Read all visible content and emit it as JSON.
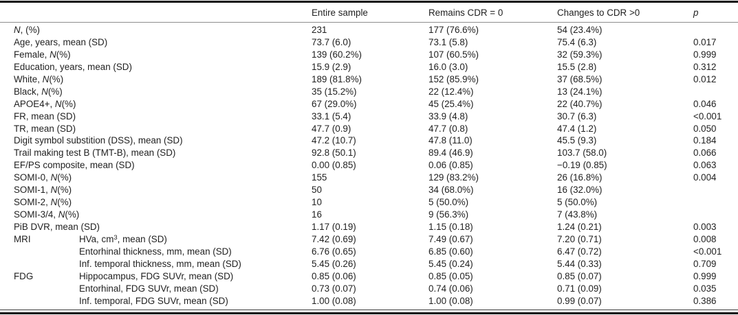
{
  "table": {
    "header": {
      "entire": "Entire sample",
      "remains": "Remains CDR = 0",
      "changes": "Changes to CDR >0",
      "p": "p"
    },
    "rows": [
      {
        "group": "",
        "indent": false,
        "pre": "",
        "it": "N",
        "sup": "",
        "post": ", (%)",
        "entire": "231",
        "remains": "177 (76.6%)",
        "changes": "54 (23.4%)",
        "p": ""
      },
      {
        "group": "",
        "indent": false,
        "pre": "Age, years, mean (SD)",
        "it": "",
        "sup": "",
        "post": "",
        "entire": "73.7 (6.0)",
        "remains": "73.1 (5.8)",
        "changes": "75.4 (6.3)",
        "p": "0.017"
      },
      {
        "group": "",
        "indent": false,
        "pre": "Female, ",
        "it": "N",
        "sup": "",
        "post": "(%)",
        "entire": "139 (60.2%)",
        "remains": "107 (60.5%)",
        "changes": "32 (59.3%)",
        "p": "0.999"
      },
      {
        "group": "",
        "indent": false,
        "pre": "Education, years, mean (SD)",
        "it": "",
        "sup": "",
        "post": "",
        "entire": "15.9 (2.9)",
        "remains": "16.0 (3.0)",
        "changes": "15.5 (2.8)",
        "p": "0.312"
      },
      {
        "group": "",
        "indent": false,
        "pre": "White, ",
        "it": "N",
        "sup": "",
        "post": "(%)",
        "entire": "189 (81.8%)",
        "remains": "152 (85.9%)",
        "changes": "37 (68.5%)",
        "p": "0.012"
      },
      {
        "group": "",
        "indent": false,
        "pre": "Black, ",
        "it": "N",
        "sup": "",
        "post": "(%)",
        "entire": "35 (15.2%)",
        "remains": "22 (12.4%)",
        "changes": "13 (24.1%)",
        "p": ""
      },
      {
        "group": "",
        "indent": false,
        "pre": "APOE4+, ",
        "it": "N",
        "sup": "",
        "post": "(%)",
        "entire": "67 (29.0%)",
        "remains": "45 (25.4%)",
        "changes": "22 (40.7%)",
        "p": "0.046"
      },
      {
        "group": "",
        "indent": false,
        "pre": "FR, mean (SD)",
        "it": "",
        "sup": "",
        "post": "",
        "entire": "33.1 (5.4)",
        "remains": "33.9 (4.8)",
        "changes": "30.7 (6.3)",
        "p": "<0.001"
      },
      {
        "group": "",
        "indent": false,
        "pre": "TR, mean (SD)",
        "it": "",
        "sup": "",
        "post": "",
        "entire": "47.7 (0.9)",
        "remains": "47.7 (0.8)",
        "changes": "47.4 (1.2)",
        "p": "0.050"
      },
      {
        "group": "",
        "indent": false,
        "pre": "Digit symbol substition (DSS), mean (SD)",
        "it": "",
        "sup": "",
        "post": "",
        "entire": "47.2 (10.7)",
        "remains": "47.8 (11.0)",
        "changes": "45.5 (9.3)",
        "p": "0.184"
      },
      {
        "group": "",
        "indent": false,
        "pre": "Trail making test B (TMT-B), mean (SD)",
        "it": "",
        "sup": "",
        "post": "",
        "entire": "92.8 (50.1)",
        "remains": "89.4 (46.9)",
        "changes": "103.7 (58.0)",
        "p": "0.066"
      },
      {
        "group": "",
        "indent": false,
        "pre": "EF/PS composite, mean (SD)",
        "it": "",
        "sup": "",
        "post": "",
        "entire": "0.00 (0.85)",
        "remains": "0.06 (0.85)",
        "changes": "−0.19 (0.85)",
        "p": "0.063"
      },
      {
        "group": "",
        "indent": false,
        "pre": "SOMI-0, ",
        "it": "N",
        "sup": "",
        "post": "(%)",
        "entire": "155",
        "remains": "129 (83.2%)",
        "changes": "26 (16.8%)",
        "p": "0.004"
      },
      {
        "group": "",
        "indent": false,
        "pre": "SOMI-1, ",
        "it": "N",
        "sup": "",
        "post": "(%)",
        "entire": "50",
        "remains": "34 (68.0%)",
        "changes": "16 (32.0%)",
        "p": ""
      },
      {
        "group": "",
        "indent": false,
        "pre": "SOMI-2, ",
        "it": "N",
        "sup": "",
        "post": "(%)",
        "entire": "10",
        "remains": "5 (50.0%)",
        "changes": "5 (50.0%)",
        "p": ""
      },
      {
        "group": "",
        "indent": false,
        "pre": "SOMI-3/4, ",
        "it": "N",
        "sup": "",
        "post": "(%)",
        "entire": "16",
        "remains": "9 (56.3%)",
        "changes": "7 (43.8%)",
        "p": ""
      },
      {
        "group": "",
        "indent": false,
        "pre": "PiB DVR, mean (SD)",
        "it": "",
        "sup": "",
        "post": "",
        "entire": "1.17 (0.19)",
        "remains": "1.15 (0.18)",
        "changes": "1.24 (0.21)",
        "p": "0.003"
      },
      {
        "group": "MRI",
        "indent": true,
        "pre": "HVa, cm",
        "it": "",
        "sup": "3",
        "post": ", mean (SD)",
        "entire": "7.42 (0.69)",
        "remains": "7.49 (0.67)",
        "changes": "7.20 (0.71)",
        "p": "0.008"
      },
      {
        "group": "",
        "indent": true,
        "pre": "Entorhinal thickness, mm, mean (SD)",
        "it": "",
        "sup": "",
        "post": "",
        "entire": "6.76 (0.65)",
        "remains": "6.85 (0.60)",
        "changes": "6.47 (0.72)",
        "p": "<0.001"
      },
      {
        "group": "",
        "indent": true,
        "pre": "Inf. temporal thickness, mm, mean (SD)",
        "it": "",
        "sup": "",
        "post": "",
        "entire": "5.45 (0.26)",
        "remains": "5.45 (0.24)",
        "changes": "5.44 (0.33)",
        "p": "0.709"
      },
      {
        "group": "FDG",
        "indent": true,
        "pre": "Hippocampus, FDG SUVr, mean (SD)",
        "it": "",
        "sup": "",
        "post": "",
        "entire": "0.85 (0.06)",
        "remains": "0.85 (0.05)",
        "changes": "0.85 (0.07)",
        "p": "0.999"
      },
      {
        "group": "",
        "indent": true,
        "pre": "Entorhinal, FDG SUVr, mean (SD)",
        "it": "",
        "sup": "",
        "post": "",
        "entire": "0.73 (0.07)",
        "remains": "0.74 (0.06)",
        "changes": "0.71 (0.09)",
        "p": "0.035"
      },
      {
        "group": "",
        "indent": true,
        "pre": "Inf. temporal, FDG SUVr, mean (SD)",
        "it": "",
        "sup": "",
        "post": "",
        "entire": "1.00 (0.08)",
        "remains": "1.00 (0.08)",
        "changes": "0.99 (0.07)",
        "p": "0.386"
      }
    ]
  }
}
